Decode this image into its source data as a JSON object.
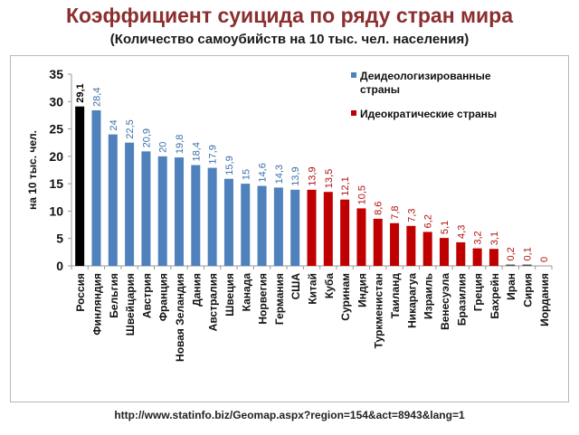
{
  "title": "Коэффициент суицида по ряду стран мира",
  "subtitle": "(Количество самоубийств на 10 тыс. чел. населения)",
  "source": "http://www.statinfo.biz/Geomap.aspx?region=154&act=8943&lang=1",
  "colors": {
    "russia": "#000000",
    "blue": "#4f81bd",
    "red": "#c00000",
    "tiny": "#555555",
    "blue_label": "#3d6ea8",
    "red_label": "#b01010"
  },
  "chart_data": {
    "type": "bar",
    "title": "Коэффициент суицида по ряду стран мира",
    "subtitle": "(Количество самоубийств на 10 тыс. чел. населения)",
    "ylabel": "на 10 тыс. чел.",
    "xlabel": "",
    "ylim": [
      0,
      35
    ],
    "yticks": [
      "0",
      "5",
      "10",
      "15",
      "20",
      "25",
      "30",
      "35"
    ],
    "categories": [
      "Россия",
      "Финляндия",
      "Бельгия",
      "Швейцария",
      "Австрия",
      "Франция",
      "Новая Зеландия",
      "Дания",
      "Австралия",
      "Швеция",
      "Канада",
      "Норвегия",
      "Германия",
      "США",
      "Китай",
      "Куба",
      "Суринам",
      "Индия",
      "Туркменистан",
      "Таиланд",
      "Никарагуа",
      "Израиль",
      "Венесуэла",
      "Бразилия",
      "Греция",
      "Бахрейн",
      "Иран",
      "Сирия",
      "Иордания"
    ],
    "values": [
      29.1,
      28.4,
      24,
      22.5,
      20.9,
      20,
      19.8,
      18.4,
      17.9,
      15.9,
      15,
      14.6,
      14.3,
      13.9,
      13.9,
      13.5,
      12.1,
      10.5,
      8.6,
      7.8,
      7.3,
      6.2,
      5.1,
      4.3,
      3.2,
      3.1,
      0.2,
      0.1,
      0
    ],
    "value_labels": [
      "29,1",
      "28,4",
      "24",
      "22,5",
      "20,9",
      "20",
      "19,8",
      "18,4",
      "17,9",
      "15,9",
      "15",
      "14,6",
      "14,3",
      "13,9",
      "13,9",
      "13,5",
      "12,1",
      "10,5",
      "8,6",
      "7,8",
      "7,3",
      "6,2",
      "5,1",
      "4,3",
      "3,2",
      "3,1",
      "0,2",
      "0,1",
      "0"
    ],
    "groups": [
      "russia",
      "blue",
      "blue",
      "blue",
      "blue",
      "blue",
      "blue",
      "blue",
      "blue",
      "blue",
      "blue",
      "blue",
      "blue",
      "blue",
      "red",
      "red",
      "red",
      "red",
      "red",
      "red",
      "red",
      "red",
      "red",
      "red",
      "red",
      "red",
      "red",
      "red",
      "red"
    ],
    "legend": [
      {
        "label_line1": "Деидеологизированные",
        "label_line2": "страны",
        "group": "blue"
      },
      {
        "label_line1": "Идеократические страны",
        "label_line2": "",
        "group": "red"
      }
    ],
    "legend_position": "top-right",
    "grid": false
  }
}
